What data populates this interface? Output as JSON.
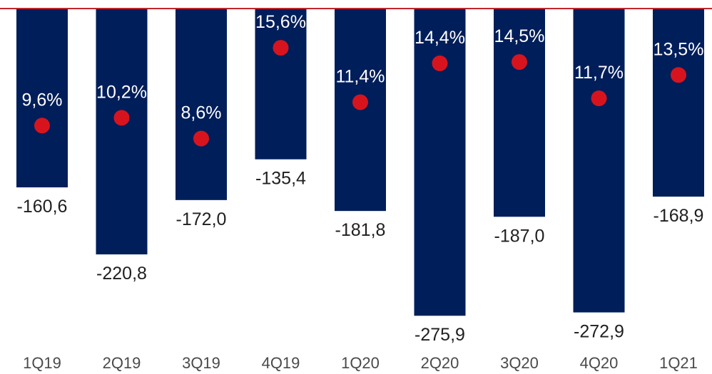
{
  "chart_data": {
    "type": "bar",
    "categories": [
      "1Q19",
      "2Q19",
      "3Q19",
      "4Q19",
      "1Q20",
      "2Q20",
      "3Q20",
      "4Q20",
      "1Q21"
    ],
    "series": [
      {
        "values": [
          -160.6,
          -220.8,
          -172.0,
          -135.4,
          -181.8,
          -275.9,
          -187.0,
          -272.9,
          -168.9
        ],
        "value_labels": [
          "-160,6",
          "-220,8",
          "-172,0",
          "-135,4",
          "-181,8",
          "-275,9",
          "-187,0",
          "-272,9",
          "-168,9"
        ],
        "color": "#001e5a"
      },
      {
        "type": "scatter",
        "values": [
          9.6,
          10.2,
          8.6,
          15.6,
          11.4,
          14.4,
          14.5,
          11.7,
          13.5
        ],
        "value_labels": [
          "9,6%",
          "10,2%",
          "8,6%",
          "15,6%",
          "11,4%",
          "14,4%",
          "14,5%",
          "11,7%",
          "13,5%"
        ],
        "color": "#d7141e"
      }
    ],
    "ylim": [
      -290,
      0
    ],
    "ylim_secondary": [
      0,
      22
    ],
    "grid": false,
    "legend": "none",
    "baseline_color": "#c0262c"
  }
}
